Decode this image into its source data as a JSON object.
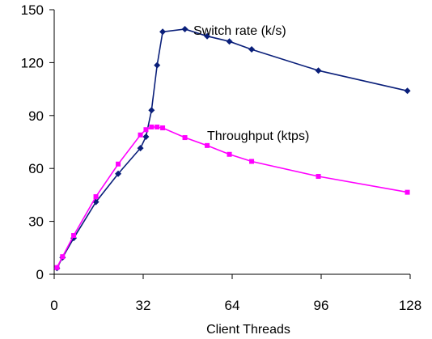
{
  "chart_data": {
    "type": "line",
    "xlabel": "Client Threads",
    "ylabel": "",
    "xlim": [
      0,
      128
    ],
    "ylim": [
      0,
      150
    ],
    "xticks": [
      0,
      32,
      64,
      96,
      128
    ],
    "yticks": [
      0,
      30,
      60,
      90,
      120,
      150
    ],
    "grid": false,
    "legend": "none",
    "series": [
      {
        "name": "Switch rate (k/s)",
        "color": "#0a1f7a",
        "marker": "diamond",
        "x": [
          1,
          3,
          7,
          15,
          23,
          31,
          33,
          35,
          37,
          39,
          47,
          55,
          63,
          71,
          95,
          127
        ],
        "y": [
          3.5,
          9.5,
          20.5,
          41,
          57,
          71.5,
          78,
          93,
          118.5,
          137.5,
          139,
          135,
          132,
          127.5,
          115.5,
          104
        ]
      },
      {
        "name": "Throughput (ktps)",
        "color": "#ff00ff",
        "marker": "square",
        "x": [
          1,
          3,
          7,
          15,
          23,
          31,
          33,
          35,
          37,
          39,
          47,
          55,
          63,
          71,
          95,
          127
        ],
        "y": [
          3.8,
          10,
          22,
          44,
          62.5,
          79,
          82,
          83.5,
          83.5,
          83,
          77.5,
          73,
          68,
          64,
          55.5,
          46.5
        ]
      }
    ]
  }
}
